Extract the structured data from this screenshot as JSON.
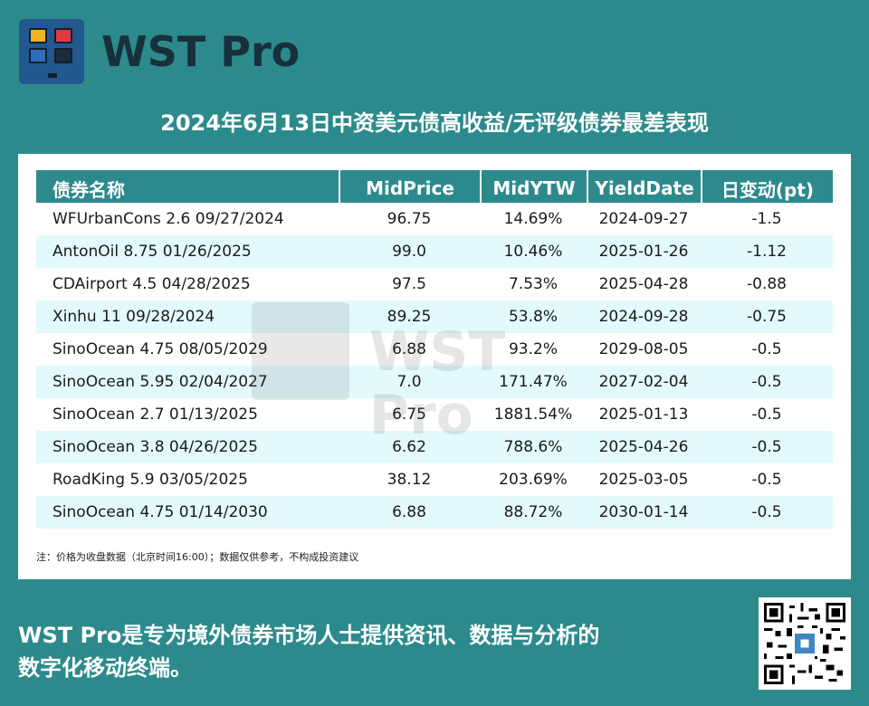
{
  "brand": {
    "name": "WST Pro",
    "logo_colors": [
      "#f0b323",
      "#e03a3e",
      "#2f6fb7",
      "#1d2b3a"
    ]
  },
  "title": "2024年6月13日中资美元债高收益/无评级债券最差表现",
  "table": {
    "headers": [
      "债券名称",
      "MidPrice",
      "MidYTW",
      "YieldDate",
      "日变动(pt)"
    ],
    "rows": [
      [
        "WFUrbanCons 2.6 09/27/2024",
        "96.75",
        "14.69%",
        "2024-09-27",
        "-1.5"
      ],
      [
        "AntonOil 8.75 01/26/2025",
        "99.0",
        "10.46%",
        "2025-01-26",
        "-1.12"
      ],
      [
        "CDAirport 4.5 04/28/2025",
        "97.5",
        "7.53%",
        "2025-04-28",
        "-0.88"
      ],
      [
        "Xinhu 11 09/28/2024",
        "89.25",
        "53.8%",
        "2024-09-28",
        "-0.75"
      ],
      [
        "SinoOcean 4.75 08/05/2029",
        "6.88",
        "93.2%",
        "2029-08-05",
        "-0.5"
      ],
      [
        "SinoOcean 5.95 02/04/2027",
        "7.0",
        "171.47%",
        "2027-02-04",
        "-0.5"
      ],
      [
        "SinoOcean 2.7 01/13/2025",
        "6.75",
        "1881.54%",
        "2025-01-13",
        "-0.5"
      ],
      [
        "SinoOcean 3.8 04/26/2025",
        "6.62",
        "788.6%",
        "2025-04-26",
        "-0.5"
      ],
      [
        "RoadKing 5.9 03/05/2025",
        "38.12",
        "203.69%",
        "2025-03-05",
        "-0.5"
      ],
      [
        "SinoOcean 4.75 01/14/2030",
        "6.88",
        "88.72%",
        "2030-01-14",
        "-0.5"
      ]
    ]
  },
  "note": "注：价格为收盘数据（北京时间16:00）；数据仅供参考，不构成投资建议",
  "watermark": "WST Pro",
  "footer": {
    "line1": "WST Pro是专为境外债券市场人士提供资讯、数据与分析的",
    "line2": "数字化移动终端。"
  },
  "qr_icon": "qr-code-icon"
}
